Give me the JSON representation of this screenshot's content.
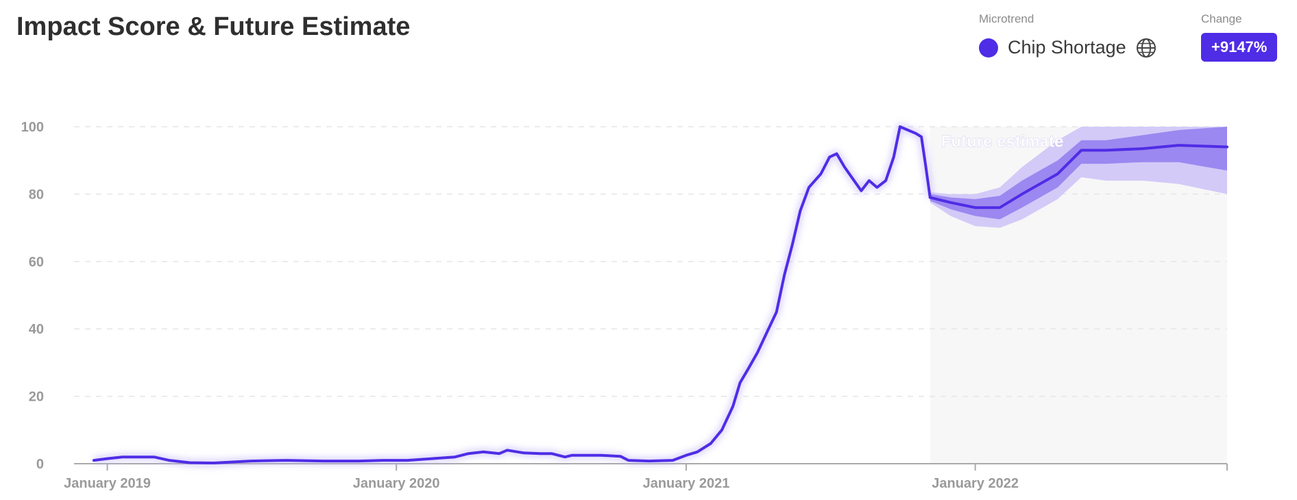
{
  "title": "Impact Score & Future Estimate",
  "legend": {
    "label": "Microtrend",
    "name": "Chip Shortage",
    "icon": "globe-icon"
  },
  "change": {
    "label": "Change",
    "value": "+9147%"
  },
  "colors": {
    "accent": "#4f2ce6",
    "band_inner": "#9b88f0",
    "band_outer": "#d3caf8",
    "future_bg": "#f7f7f7"
  },
  "chart_data": {
    "type": "line",
    "title": "Impact Score & Future Estimate",
    "xlabel": "",
    "ylabel": "",
    "ylim": [
      0,
      100
    ],
    "yticks": [
      0,
      20,
      40,
      60,
      80,
      100
    ],
    "xticks": [
      "January 2019",
      "January 2020",
      "January 2021",
      "January 2022"
    ],
    "xrange": [
      "2018-11-20",
      "2022-11-15"
    ],
    "grid": true,
    "annotation": "Future estimate",
    "future_start": "2021-11-05",
    "series": [
      {
        "name": "Chip Shortage",
        "points": [
          [
            "2018-12-15",
            1
          ],
          [
            "2019-01-01",
            1.5
          ],
          [
            "2019-01-20",
            2
          ],
          [
            "2019-02-15",
            2
          ],
          [
            "2019-03-01",
            2
          ],
          [
            "2019-03-20",
            1
          ],
          [
            "2019-04-15",
            0.3
          ],
          [
            "2019-05-15",
            0.2
          ],
          [
            "2019-07-01",
            0.8
          ],
          [
            "2019-08-15",
            1
          ],
          [
            "2019-10-01",
            0.8
          ],
          [
            "2019-11-15",
            0.8
          ],
          [
            "2019-12-15",
            1
          ],
          [
            "2020-01-15",
            1
          ],
          [
            "2020-02-15",
            1.5
          ],
          [
            "2020-03-15",
            2
          ],
          [
            "2020-04-01",
            3
          ],
          [
            "2020-04-20",
            3.5
          ],
          [
            "2020-05-10",
            3
          ],
          [
            "2020-05-20",
            4
          ],
          [
            "2020-06-10",
            3.2
          ],
          [
            "2020-07-01",
            3
          ],
          [
            "2020-07-15",
            3
          ],
          [
            "2020-08-01",
            2
          ],
          [
            "2020-08-10",
            2.5
          ],
          [
            "2020-09-15",
            2.5
          ],
          [
            "2020-10-10",
            2.2
          ],
          [
            "2020-10-20",
            1
          ],
          [
            "2020-11-15",
            0.8
          ],
          [
            "2020-12-15",
            1
          ],
          [
            "2021-01-01",
            2.5
          ],
          [
            "2021-01-15",
            3.5
          ],
          [
            "2021-02-01",
            6
          ],
          [
            "2021-02-15",
            10
          ],
          [
            "2021-03-01",
            17
          ],
          [
            "2021-03-10",
            24
          ],
          [
            "2021-03-20",
            28
          ],
          [
            "2021-04-01",
            33
          ],
          [
            "2021-04-15",
            40
          ],
          [
            "2021-04-25",
            45
          ],
          [
            "2021-05-05",
            56
          ],
          [
            "2021-05-15",
            65
          ],
          [
            "2021-05-25",
            75
          ],
          [
            "2021-06-05",
            82
          ],
          [
            "2021-06-20",
            86
          ],
          [
            "2021-07-01",
            91
          ],
          [
            "2021-07-10",
            92
          ],
          [
            "2021-07-20",
            88
          ],
          [
            "2021-08-01",
            84
          ],
          [
            "2021-08-10",
            81
          ],
          [
            "2021-08-20",
            84
          ],
          [
            "2021-08-30",
            82
          ],
          [
            "2021-09-10",
            84
          ],
          [
            "2021-09-20",
            91
          ],
          [
            "2021-09-28",
            100
          ],
          [
            "2021-10-08",
            99
          ],
          [
            "2021-10-18",
            98
          ],
          [
            "2021-10-25",
            97
          ],
          [
            "2021-10-30",
            89
          ],
          [
            "2021-11-05",
            79
          ]
        ]
      },
      {
        "name": "Future estimate",
        "points": [
          [
            "2021-11-05",
            79
          ],
          [
            "2021-12-01",
            77.5
          ],
          [
            "2022-01-01",
            76
          ],
          [
            "2022-02-01",
            76
          ],
          [
            "2022-03-01",
            80
          ],
          [
            "2022-04-15",
            86
          ],
          [
            "2022-05-15",
            93
          ],
          [
            "2022-06-15",
            93
          ],
          [
            "2022-08-01",
            93.5
          ],
          [
            "2022-09-15",
            94.5
          ],
          [
            "2022-11-15",
            94
          ]
        ],
        "band_inner": {
          "upper": [
            80,
            79,
            78.5,
            79.5,
            84,
            90,
            96,
            96,
            97.5,
            99,
            100
          ],
          "lower": [
            78,
            75.5,
            73.5,
            72.5,
            76,
            82,
            89,
            89,
            89.5,
            89.5,
            87
          ]
        },
        "band_outer": {
          "upper": [
            80.5,
            80,
            80,
            82,
            88,
            96,
            100,
            100,
            100,
            100,
            100
          ],
          "lower": [
            77.5,
            73.5,
            70.5,
            70,
            72.5,
            78.5,
            85,
            84,
            84,
            83,
            80
          ]
        }
      }
    ]
  }
}
